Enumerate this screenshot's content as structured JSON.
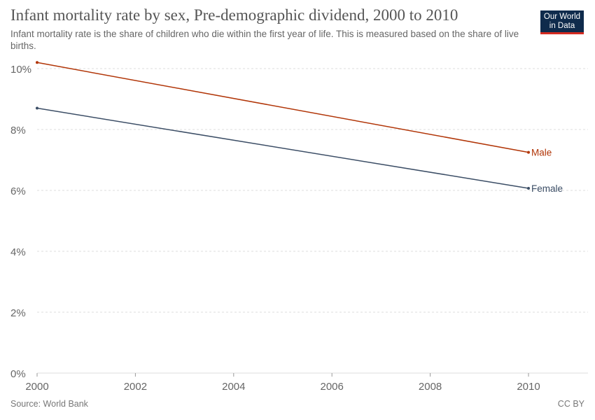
{
  "header": {
    "title": "Infant mortality rate by sex, Pre-demographic dividend, 2000 to 2010",
    "subtitle": "Infant mortality rate is the share of children who die within the first year of life. This is measured based on the share of live births.",
    "logo_line1": "Our World",
    "logo_line2": "in Data"
  },
  "footer": {
    "source": "Source: World Bank",
    "license": "CC BY"
  },
  "colors": {
    "male": "#b13507",
    "female": "#3c4e66",
    "grid": "#dddddd",
    "axis_text": "#666666",
    "logo_bg": "#0f2b4c",
    "logo_accent": "#d42b21"
  },
  "chart_data": {
    "type": "line",
    "title": "Infant mortality rate by sex, Pre-demographic dividend, 2000 to 2010",
    "xlabel": "",
    "ylabel": "",
    "x": [
      2000,
      2010
    ],
    "xlim": [
      2000,
      2010
    ],
    "ylim": [
      0,
      10
    ],
    "x_ticks": [
      2000,
      2002,
      2004,
      2006,
      2008,
      2010
    ],
    "y_ticks": [
      0,
      2,
      4,
      6,
      8,
      10
    ],
    "y_tick_labels": [
      "0%",
      "2%",
      "4%",
      "6%",
      "8%",
      "10%"
    ],
    "grid": "horizontal dashed",
    "legend": "inline labels at line ends",
    "series": [
      {
        "name": "Male",
        "color": "#b13507",
        "values": [
          10.2,
          7.25
        ]
      },
      {
        "name": "Female",
        "color": "#3c4e66",
        "values": [
          8.7,
          6.07
        ]
      }
    ]
  }
}
